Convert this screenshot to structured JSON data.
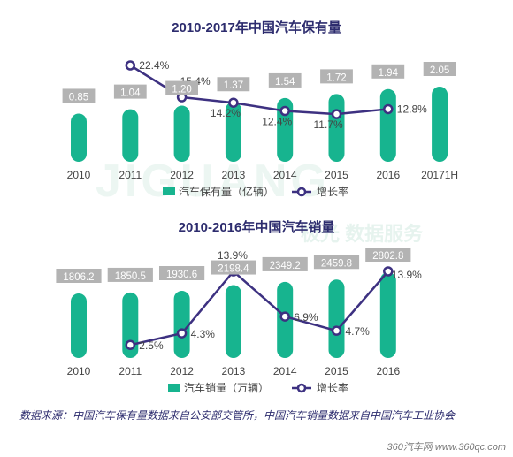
{
  "chart_data": [
    {
      "type": "bar+line",
      "title": "2010-2017年中国汽车保有量",
      "categories": [
        "2010",
        "2011",
        "2012",
        "2013",
        "2014",
        "2015",
        "2016",
        "20171H"
      ],
      "series": [
        {
          "name": "汽车保有量（亿辆）",
          "type": "bar",
          "values": [
            0.85,
            1.04,
            1.2,
            1.37,
            1.54,
            1.72,
            1.94,
            2.05
          ],
          "labels": [
            "0.85",
            "1.04",
            "1.20",
            "1.37",
            "1.54",
            "1.72",
            "1.94",
            "2.05"
          ]
        },
        {
          "name": "增长率",
          "type": "line",
          "values": [
            null,
            22.4,
            15.4,
            14.2,
            12.4,
            11.7,
            12.8,
            null
          ],
          "labels": [
            "",
            "22.4%",
            "15.4%",
            "14.2%",
            "12.4%",
            "11.7%",
            "12.8%",
            ""
          ]
        }
      ],
      "legend_position": "bottom",
      "grid": false
    },
    {
      "type": "bar+line",
      "title": "2010-2016年中国汽车销量",
      "categories": [
        "2010",
        "2011",
        "2012",
        "2013",
        "2014",
        "2015",
        "2016"
      ],
      "series": [
        {
          "name": "汽车销量（万辆）",
          "type": "bar",
          "values": [
            1806.2,
            1850.5,
            1930.6,
            2198.4,
            2349.2,
            2459.8,
            2802.8
          ],
          "labels": [
            "1806.2",
            "1850.5",
            "1930.6",
            "2198.4",
            "2349.2",
            "2459.8",
            "2802.8"
          ]
        },
        {
          "name": "增长率",
          "type": "line",
          "values": [
            null,
            2.5,
            4.3,
            13.9,
            6.9,
            4.7,
            13.9
          ],
          "labels": [
            "",
            "2.5%",
            "4.3%",
            "13.9%",
            "6.9%",
            "4.7%",
            "13.9%"
          ]
        }
      ],
      "legend_position": "bottom",
      "grid": false
    }
  ],
  "watermark": {
    "text": "极光  数据服务",
    "latin": "JIGUANG"
  },
  "source_note": "数据来源：中国汽车保有量数据来自公安部交管所，中国汽车销量数据来自中国汽车工业协会",
  "site_logo": "360汽车网 www.360qc.com",
  "colors": {
    "bar": "#17b48f",
    "line": "#3d3181",
    "label_bg": "#b3b3b3",
    "title": "#2d2c6e"
  }
}
